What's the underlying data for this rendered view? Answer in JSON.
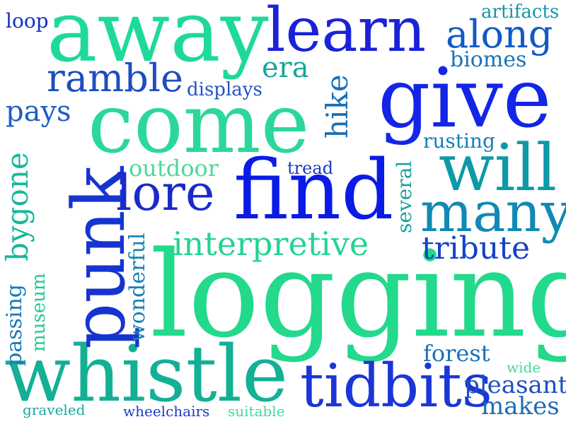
{
  "words": [
    {
      "id": "logging",
      "text": "logging",
      "color": "#22d98c"
    },
    {
      "id": "whistle",
      "text": "whistle",
      "color": "#13b095"
    },
    {
      "id": "away",
      "text": "away",
      "color": "#1fd99a"
    },
    {
      "id": "come",
      "text": "come",
      "color": "#2bd89a"
    },
    {
      "id": "find",
      "text": "find",
      "color": "#0a1be6"
    },
    {
      "id": "give",
      "text": "give",
      "color": "#1325e6"
    },
    {
      "id": "learn",
      "text": "learn",
      "color": "#1a22d8"
    },
    {
      "id": "punk",
      "text": "punk",
      "color": "#1534d0"
    },
    {
      "id": "tidbits",
      "text": "tidbits",
      "color": "#1a36d8"
    },
    {
      "id": "will",
      "text": "will",
      "color": "#0c9aa6"
    },
    {
      "id": "many",
      "text": "many",
      "color": "#1289b5"
    },
    {
      "id": "lore",
      "text": "lore",
      "color": "#1a2ac9"
    },
    {
      "id": "along",
      "text": "along",
      "color": "#1259c6"
    },
    {
      "id": "ramble",
      "text": "ramble",
      "color": "#1e4dbf"
    },
    {
      "id": "interpretive",
      "text": "interpretive",
      "color": "#25d393"
    },
    {
      "id": "tribute",
      "text": "tribute",
      "color": "#1442c6"
    },
    {
      "id": "pleasant",
      "text": "pleasant",
      "color": "#1c4fc4"
    },
    {
      "id": "makes",
      "text": "makes",
      "color": "#1d6bb5"
    },
    {
      "id": "bygone",
      "text": "bygone",
      "color": "#16b89a"
    },
    {
      "id": "pays",
      "text": "pays",
      "color": "#1e5ec2"
    },
    {
      "id": "hike",
      "text": "hike",
      "color": "#1970b5"
    },
    {
      "id": "outdoor",
      "text": "outdoor",
      "color": "#4dd89a"
    },
    {
      "id": "era",
      "text": "era",
      "color": "#16a5a0"
    },
    {
      "id": "biomes",
      "text": "biomes",
      "color": "#1a72b8"
    },
    {
      "id": "artifacts",
      "text": "artifacts",
      "color": "#1596a6"
    },
    {
      "id": "loop",
      "text": "loop",
      "color": "#1230c6"
    },
    {
      "id": "displays",
      "text": "displays",
      "color": "#2452c2"
    },
    {
      "id": "rusting",
      "text": "rusting",
      "color": "#1880b8"
    },
    {
      "id": "tread",
      "text": "tread",
      "color": "#1a38c8"
    },
    {
      "id": "several",
      "text": "several",
      "color": "#16a09f"
    },
    {
      "id": "forest",
      "text": "forest",
      "color": "#1971b5"
    },
    {
      "id": "wide",
      "text": "wide",
      "color": "#44d89a"
    },
    {
      "id": "wonderful",
      "text": "wonderful",
      "color": "#1980b5"
    },
    {
      "id": "museum",
      "text": "museum",
      "color": "#26c994"
    },
    {
      "id": "passing",
      "text": "passing",
      "color": "#1a78b8"
    },
    {
      "id": "graveled",
      "text": "graveled",
      "color": "#1ba7a0"
    },
    {
      "id": "wheelchairs",
      "text": "wheelchairs",
      "color": "#1a3ec6"
    },
    {
      "id": "suitable",
      "text": "suitable",
      "color": "#44d89a"
    }
  ]
}
